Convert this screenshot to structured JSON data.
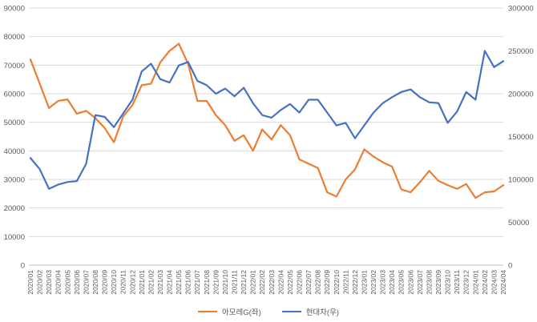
{
  "chart_data": {
    "type": "line",
    "title": "",
    "xlabel": "",
    "ylabel_left": "",
    "ylabel_right": "",
    "grid": true,
    "legend_position": "bottom",
    "x": [
      "2020/01",
      "2020/02",
      "2020/03",
      "2020/04",
      "2020/05",
      "2020/06",
      "2020/07",
      "2020/08",
      "2020/09",
      "2020/10",
      "2020/11",
      "2020/12",
      "2021/01",
      "2021/02",
      "2021/03",
      "2021/04",
      "2021/05",
      "2021/06",
      "2021/07",
      "2021/08",
      "2021/09",
      "2021/10",
      "2021/11",
      "2021/12",
      "2022/01",
      "2022/02",
      "2022/03",
      "2022/04",
      "2022/05",
      "2022/06",
      "2022/07",
      "2022/08",
      "2022/09",
      "2022/10",
      "2022/11",
      "2022/12",
      "2023/01",
      "2023/02",
      "2023/03",
      "2023/04",
      "2023/05",
      "2023/06",
      "2023/07",
      "2023/08",
      "2023/09",
      "2023/10",
      "2023/11",
      "2023/12",
      "2024/01",
      "2024/02",
      "2024/03",
      "2024/04"
    ],
    "series": [
      {
        "name": "아모레G(좌)",
        "axis": "left",
        "color": "#ED7D31",
        "values": [
          72000,
          63500,
          55000,
          57500,
          58000,
          53000,
          54000,
          51500,
          48000,
          43000,
          52000,
          56000,
          63000,
          63500,
          71000,
          75000,
          77500,
          70500,
          57500,
          57500,
          52500,
          49000,
          43500,
          45500,
          40000,
          47500,
          44000,
          49000,
          45500,
          37000,
          35500,
          34000,
          25500,
          24000,
          30000,
          33500,
          40500,
          38000,
          36000,
          34500,
          26500,
          25500,
          29000,
          33000,
          29500,
          28000,
          26700,
          28400,
          23500,
          25500,
          25800,
          28000
        ]
      },
      {
        "name": "현대차(우)",
        "axis": "right",
        "color": "#4472C4",
        "values": [
          125000,
          112000,
          89000,
          94000,
          97000,
          98000,
          118000,
          175000,
          173000,
          161000,
          177000,
          193000,
          226000,
          235000,
          217000,
          213000,
          233000,
          237000,
          215000,
          210000,
          200000,
          206000,
          197000,
          207000,
          189000,
          175000,
          172000,
          181000,
          188000,
          178000,
          193000,
          193000,
          178000,
          163000,
          166000,
          148000,
          163000,
          178000,
          189000,
          196000,
          202000,
          205000,
          196000,
          190000,
          189000,
          166000,
          179000,
          202000,
          193000,
          250000,
          231000,
          238000
        ]
      }
    ],
    "left_axis": {
      "min": 0,
      "max": 90000,
      "ticks": [
        "0",
        "10000",
        "20000",
        "30000",
        "40000",
        "50000",
        "60000",
        "70000",
        "80000",
        "90000"
      ]
    },
    "right_axis": {
      "min": 0,
      "max": 300000,
      "ticks": [
        "0",
        "50000",
        "100000",
        "150000",
        "200000",
        "250000",
        "300000"
      ]
    }
  },
  "legend": {
    "items": [
      {
        "label": "아모레G(좌)",
        "color": "#ED7D31"
      },
      {
        "label": "현대차(우)",
        "color": "#4472C4"
      }
    ]
  },
  "colors": {
    "background": "#ffffff",
    "gridline": "#d9d9d9",
    "axis_line": "#bfbfbf",
    "tick_text": "#595959",
    "series_orange": "#ED7D31",
    "series_blue": "#4472C4"
  }
}
